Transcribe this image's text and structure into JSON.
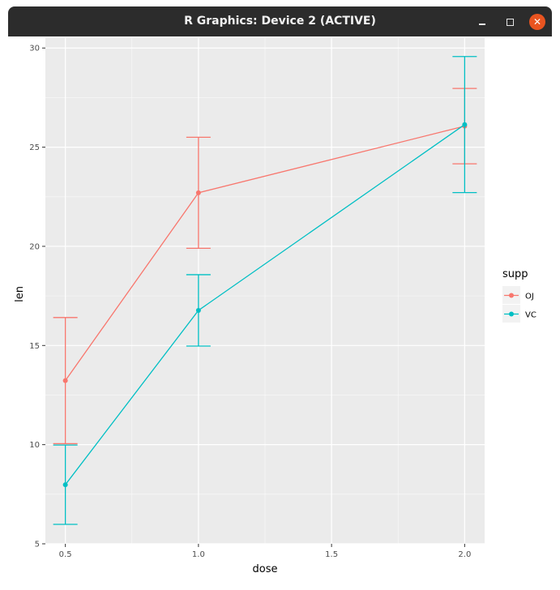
{
  "window": {
    "title": "R Graphics: Device 2 (ACTIVE)",
    "minimize_icon": "minimize-icon",
    "maximize_icon": "maximize-icon",
    "close_icon": "close-icon",
    "close_color": "#e95420"
  },
  "chart_data": {
    "type": "line",
    "xlabel": "dose",
    "ylabel": "len",
    "x_ticks": [
      "0.5",
      "1.0",
      "1.5",
      "2.0"
    ],
    "x_tick_values": [
      0.5,
      1.0,
      1.5,
      2.0
    ],
    "y_ticks": [
      "5",
      "10",
      "15",
      "20",
      "25",
      "30"
    ],
    "y_tick_values": [
      5,
      10,
      15,
      20,
      25,
      30
    ],
    "xlim": [
      0.425,
      2.075
    ],
    "ylim": [
      5,
      30.5
    ],
    "grid": true,
    "panel_background": "#ebebeb",
    "legend": {
      "title": "supp",
      "position": "right"
    },
    "series": [
      {
        "name": "OJ",
        "color": "#f8766d",
        "x": [
          0.5,
          1.0,
          2.0
        ],
        "y": [
          13.23,
          22.7,
          26.06
        ],
        "ymin": [
          10.05,
          19.9,
          24.16
        ],
        "ymax": [
          16.41,
          25.5,
          27.96
        ]
      },
      {
        "name": "VC",
        "color": "#00bfc4",
        "x": [
          0.5,
          1.0,
          2.0
        ],
        "y": [
          7.98,
          16.77,
          26.14
        ],
        "ymin": [
          5.98,
          14.97,
          22.71
        ],
        "ymax": [
          9.98,
          18.57,
          29.57
        ]
      }
    ]
  }
}
